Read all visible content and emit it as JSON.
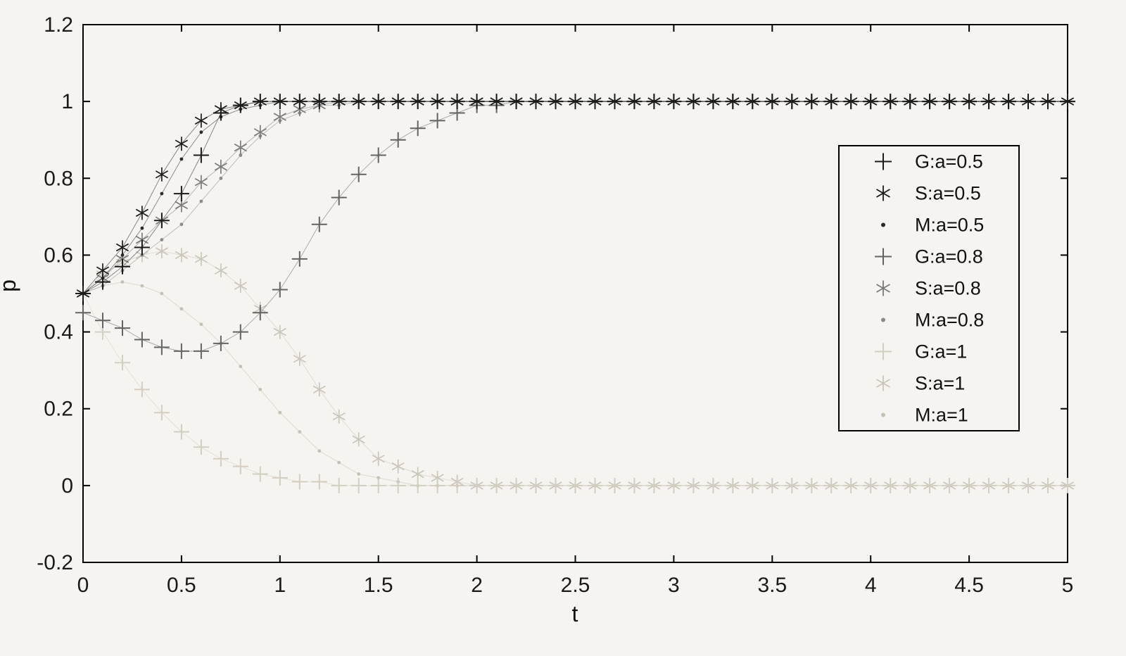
{
  "page": {
    "background": "#f6f4f1",
    "axis_color": "#000000",
    "tick_label_color": "#1a1a1a"
  },
  "chart_data": {
    "type": "scatter",
    "title": "",
    "xlabel": "t",
    "ylabel": "p",
    "xlim": [
      0,
      5
    ],
    "ylim": [
      -0.2,
      1.2
    ],
    "xticks": [
      0,
      0.5,
      1,
      1.5,
      2,
      2.5,
      3,
      3.5,
      4,
      4.5,
      5
    ],
    "yticks": [
      -0.2,
      0,
      0.2,
      0.4,
      0.6,
      0.8,
      1,
      1.2
    ],
    "grid": false,
    "legend_position": "inside-right",
    "x": [
      0,
      0.1,
      0.2,
      0.3,
      0.4,
      0.5,
      0.6,
      0.7,
      0.8,
      0.9,
      1,
      1.1,
      1.2,
      1.3,
      1.4,
      1.5,
      1.6,
      1.7,
      1.8,
      1.9,
      2,
      2.1,
      2.2,
      2.3,
      2.4,
      2.5,
      2.6,
      2.7,
      2.8,
      2.9,
      3,
      3.1,
      3.2,
      3.3,
      3.4,
      3.5,
      3.6,
      3.7,
      3.8,
      3.9,
      4,
      4.1,
      4.2,
      4.3,
      4.4,
      4.5,
      4.6,
      4.7,
      4.8,
      4.9,
      5
    ],
    "series": [
      {
        "name": "G:a=0.5",
        "marker": "plus",
        "color": "#1c1c1c",
        "values": [
          0.5,
          0.53,
          0.57,
          0.62,
          0.69,
          0.76,
          0.86,
          0.97,
          0.99,
          1,
          1,
          1,
          1,
          1,
          1,
          1,
          1,
          1,
          1,
          1,
          1,
          1,
          1,
          1,
          1,
          1,
          1,
          1,
          1,
          1,
          1,
          1,
          1,
          1,
          1,
          1,
          1,
          1,
          1,
          1,
          1,
          1,
          1,
          1,
          1,
          1,
          1,
          1,
          1,
          1,
          1
        ]
      },
      {
        "name": "S:a=0.5",
        "marker": "asterisk",
        "color": "#1c1c1c",
        "values": [
          0.5,
          0.56,
          0.62,
          0.71,
          0.81,
          0.89,
          0.95,
          0.98,
          0.99,
          1,
          1,
          1,
          1,
          1,
          1,
          1,
          1,
          1,
          1,
          1,
          1,
          1,
          1,
          1,
          1,
          1,
          1,
          1,
          1,
          1,
          1,
          1,
          1,
          1,
          1,
          1,
          1,
          1,
          1,
          1,
          1,
          1,
          1,
          1,
          1,
          1,
          1,
          1,
          1,
          1,
          1
        ]
      },
      {
        "name": "M:a=0.5",
        "marker": "dot",
        "color": "#2a2a2a",
        "values": [
          0.5,
          0.54,
          0.6,
          0.67,
          0.76,
          0.85,
          0.92,
          0.96,
          0.98,
          0.99,
          1,
          1,
          1,
          1,
          1,
          1,
          1,
          1,
          1,
          1,
          1,
          1,
          1,
          1,
          1,
          1,
          1,
          1,
          1,
          1,
          1,
          1,
          1,
          1,
          1,
          1,
          1,
          1,
          1,
          1,
          1,
          1,
          1,
          1,
          1,
          1,
          1,
          1,
          1,
          1,
          1
        ]
      },
      {
        "name": "G:a=0.8",
        "marker": "plus",
        "color": "#636363",
        "values": [
          0.45,
          0.43,
          0.41,
          0.38,
          0.36,
          0.35,
          0.35,
          0.37,
          0.4,
          0.45,
          0.51,
          0.59,
          0.68,
          0.75,
          0.81,
          0.86,
          0.9,
          0.93,
          0.95,
          0.97,
          0.99,
          0.99,
          1,
          1,
          1,
          1,
          1,
          1,
          1,
          1,
          1,
          1,
          1,
          1,
          1,
          1,
          1,
          1,
          1,
          1,
          1,
          1,
          1,
          1,
          1,
          1,
          1,
          1,
          1,
          1,
          1
        ]
      },
      {
        "name": "S:a=0.8",
        "marker": "asterisk",
        "color": "#7b7b7b",
        "values": [
          0.5,
          0.54,
          0.59,
          0.64,
          0.69,
          0.73,
          0.79,
          0.83,
          0.88,
          0.92,
          0.96,
          0.98,
          0.99,
          1,
          1,
          1,
          1,
          1,
          1,
          1,
          1,
          1,
          1,
          1,
          1,
          1,
          1,
          1,
          1,
          1,
          1,
          1,
          1,
          1,
          1,
          1,
          1,
          1,
          1,
          1,
          1,
          1,
          1,
          1,
          1,
          1,
          1,
          1,
          1,
          1,
          1
        ]
      },
      {
        "name": "M:a=0.8",
        "marker": "dot",
        "color": "#8a8a8a",
        "values": [
          0.5,
          0.52,
          0.56,
          0.6,
          0.64,
          0.68,
          0.74,
          0.8,
          0.86,
          0.91,
          0.95,
          0.97,
          0.99,
          0.99,
          1,
          1,
          1,
          1,
          1,
          1,
          1,
          1,
          1,
          1,
          1,
          1,
          1,
          1,
          1,
          1,
          1,
          1,
          1,
          1,
          1,
          1,
          1,
          1,
          1,
          1,
          1,
          1,
          1,
          1,
          1,
          1,
          1,
          1,
          1,
          1,
          1
        ]
      },
      {
        "name": "G:a=1",
        "marker": "plus",
        "color": "#d3cdc2",
        "values": [
          0.5,
          0.4,
          0.32,
          0.25,
          0.19,
          0.14,
          0.1,
          0.07,
          0.05,
          0.03,
          0.02,
          0.01,
          0.01,
          0,
          0,
          0,
          0,
          0,
          0,
          0,
          0,
          0,
          0,
          0,
          0,
          0,
          0,
          0,
          0,
          0,
          0,
          0,
          0,
          0,
          0,
          0,
          0,
          0,
          0,
          0,
          0,
          0,
          0,
          0,
          0,
          0,
          0,
          0,
          0,
          0,
          0
        ]
      },
      {
        "name": "S:a=1",
        "marker": "asterisk",
        "color": "#ccc6ba",
        "values": [
          0.5,
          0.55,
          0.58,
          0.6,
          0.61,
          0.6,
          0.59,
          0.56,
          0.52,
          0.46,
          0.4,
          0.33,
          0.25,
          0.18,
          0.12,
          0.07,
          0.05,
          0.03,
          0.02,
          0.01,
          0,
          0,
          0,
          0,
          0,
          0,
          0,
          0,
          0,
          0,
          0,
          0,
          0,
          0,
          0,
          0,
          0,
          0,
          0,
          0,
          0,
          0,
          0,
          0,
          0,
          0,
          0,
          0,
          0,
          0,
          0
        ]
      },
      {
        "name": "M:a=1",
        "marker": "dot",
        "color": "#c6c0b4",
        "values": [
          0.5,
          0.52,
          0.53,
          0.52,
          0.5,
          0.46,
          0.42,
          0.37,
          0.31,
          0.25,
          0.19,
          0.14,
          0.09,
          0.06,
          0.03,
          0.02,
          0.01,
          0,
          0,
          0,
          0,
          0,
          0,
          0,
          0,
          0,
          0,
          0,
          0,
          0,
          0,
          0,
          0,
          0,
          0,
          0,
          0,
          0,
          0,
          0,
          0,
          0,
          0,
          0,
          0,
          0,
          0,
          0,
          0,
          0,
          0
        ]
      }
    ]
  }
}
